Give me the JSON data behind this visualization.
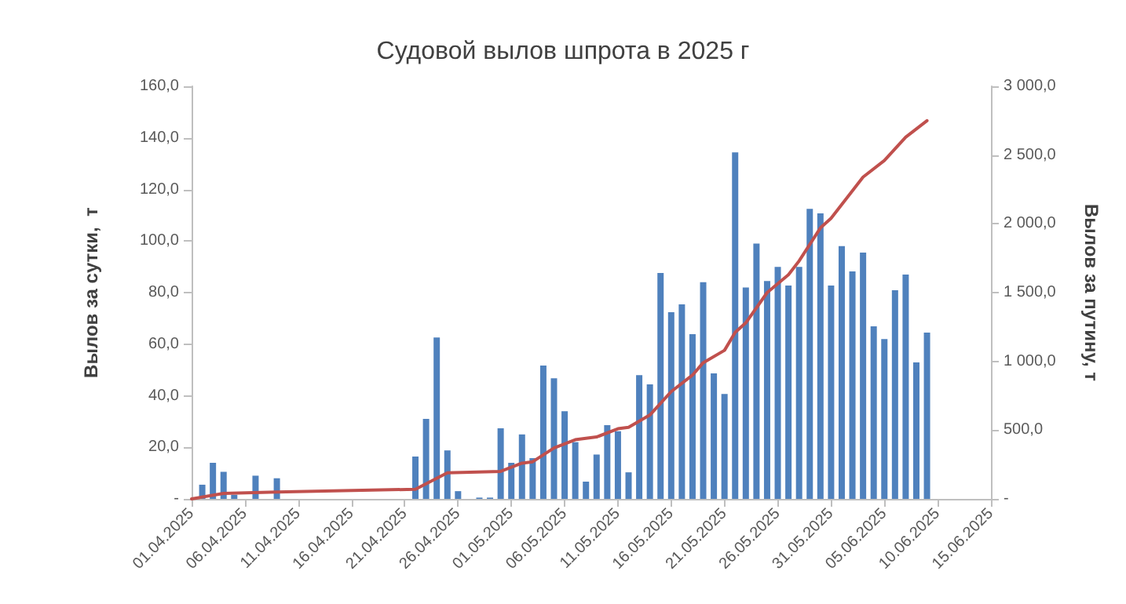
{
  "chart_data": {
    "type": "bar",
    "title": "Судовой вылов шпрота в 2025 г",
    "ylabel": "Вылов за сутки,  т",
    "y2label": "Вылов за путину, т",
    "xlim": [
      "2025-04-01",
      "2025-06-15"
    ],
    "xticks": [
      {
        "value": "2025-04-01",
        "label": "01.04.2025"
      },
      {
        "value": "2025-04-06",
        "label": "06.04.2025"
      },
      {
        "value": "2025-04-11",
        "label": "11.04.2025"
      },
      {
        "value": "2025-04-16",
        "label": "16.04.2025"
      },
      {
        "value": "2025-04-21",
        "label": "21.04.2025"
      },
      {
        "value": "2025-04-26",
        "label": "26.04.2025"
      },
      {
        "value": "2025-05-01",
        "label": "01.05.2025"
      },
      {
        "value": "2025-05-06",
        "label": "06.05.2025"
      },
      {
        "value": "2025-05-11",
        "label": "11.05.2025"
      },
      {
        "value": "2025-05-16",
        "label": "16.05.2025"
      },
      {
        "value": "2025-05-21",
        "label": "21.05.2025"
      },
      {
        "value": "2025-05-26",
        "label": "26.05.2025"
      },
      {
        "value": "2025-05-31",
        "label": "31.05.2025"
      },
      {
        "value": "2025-06-05",
        "label": "05.06.2025"
      },
      {
        "value": "2025-06-10",
        "label": "10.06.2025"
      },
      {
        "value": "2025-06-15",
        "label": "15.06.2025"
      }
    ],
    "ylim": [
      0,
      160
    ],
    "yticks": [
      {
        "value": 0,
        "label": "-"
      },
      {
        "value": 20,
        "label": "20,0"
      },
      {
        "value": 40,
        "label": "40,0"
      },
      {
        "value": 60,
        "label": "60,0"
      },
      {
        "value": 80,
        "label": "80,0"
      },
      {
        "value": 100,
        "label": "100,0"
      },
      {
        "value": 120,
        "label": "120,0"
      },
      {
        "value": 140,
        "label": "140,0"
      },
      {
        "value": 160,
        "label": "160,0"
      }
    ],
    "y2lim": [
      0,
      3000
    ],
    "y2ticks": [
      {
        "value": 0,
        "label": "-"
      },
      {
        "value": 500,
        "label": "500,0"
      },
      {
        "value": 1000,
        "label": "1 000,0"
      },
      {
        "value": 1500,
        "label": "1 500,0"
      },
      {
        "value": 2000,
        "label": "2 000,0"
      },
      {
        "value": 2500,
        "label": "2 500,0"
      },
      {
        "value": 3000,
        "label": "3 000,0"
      }
    ],
    "grid": false,
    "series": [
      {
        "color": "#4f81bd",
        "x": [
          "2025-04-02",
          "2025-04-03",
          "2025-04-04",
          "2025-04-05",
          "2025-04-07",
          "2025-04-09",
          "2025-04-22",
          "2025-04-23",
          "2025-04-24",
          "2025-04-25",
          "2025-04-26",
          "2025-04-28",
          "2025-04-29",
          "2025-04-30",
          "2025-05-01",
          "2025-05-02",
          "2025-05-03",
          "2025-05-04",
          "2025-05-05",
          "2025-05-06",
          "2025-05-07",
          "2025-05-08",
          "2025-05-09",
          "2025-05-10",
          "2025-05-11",
          "2025-05-12",
          "2025-05-13",
          "2025-05-14",
          "2025-05-15",
          "2025-05-16",
          "2025-05-17",
          "2025-05-18",
          "2025-05-19",
          "2025-05-20",
          "2025-05-21",
          "2025-05-22",
          "2025-05-23",
          "2025-05-24",
          "2025-05-25",
          "2025-05-26",
          "2025-05-27",
          "2025-05-28",
          "2025-05-29",
          "2025-05-30",
          "2025-05-31",
          "2025-06-01",
          "2025-06-02",
          "2025-06-03",
          "2025-06-04",
          "2025-06-05",
          "2025-06-06",
          "2025-06-07",
          "2025-06-08",
          "2025-06-09"
        ],
        "values": [
          5.5,
          14,
          10.5,
          1.6,
          9,
          8,
          16.4,
          31,
          62.6,
          18.8,
          3,
          0.5,
          0.5,
          27.4,
          14,
          25,
          15.8,
          51.7,
          46.8,
          34,
          22,
          6.7,
          17.2,
          28.6,
          26.2,
          10.3,
          48,
          44.4,
          87.6,
          72.4,
          75.4,
          63.9,
          84,
          48.7,
          40.7,
          134.4,
          82,
          99,
          84.5,
          90,
          82.7,
          90,
          112.5,
          110.7,
          82.7,
          98,
          88.2,
          95.5,
          66.9,
          62,
          80.9,
          87,
          52.9,
          64.5
        ]
      },
      {
        "type": "line",
        "axis": "y2",
        "color": "#c0504d",
        "marker": "none",
        "x": [
          "2025-04-01",
          "2025-04-04",
          "2025-04-09",
          "2025-04-22",
          "2025-04-24",
          "2025-04-25",
          "2025-04-30",
          "2025-05-02",
          "2025-05-03",
          "2025-05-05",
          "2025-05-07",
          "2025-05-09",
          "2025-05-11",
          "2025-05-12",
          "2025-05-14",
          "2025-05-16",
          "2025-05-18",
          "2025-05-19",
          "2025-05-21",
          "2025-05-22",
          "2025-05-23",
          "2025-05-25",
          "2025-05-27",
          "2025-05-28",
          "2025-05-30",
          "2025-05-31",
          "2025-06-01",
          "2025-06-03",
          "2025-06-05",
          "2025-06-07",
          "2025-06-09"
        ],
        "values": [
          0,
          40,
          50,
          70,
          150,
          190,
          200,
          260,
          270,
          370,
          430,
          450,
          510,
          520,
          610,
          780,
          900,
          990,
          1080,
          1210,
          1280,
          1500,
          1630,
          1730,
          1970,
          2040,
          2140,
          2340,
          2460,
          2630,
          2750
        ]
      }
    ]
  }
}
